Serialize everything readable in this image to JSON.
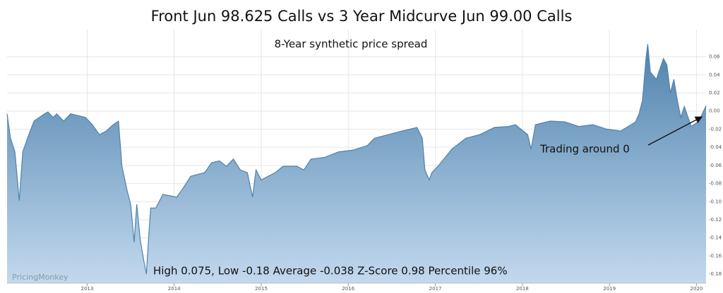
{
  "chart_data": {
    "type": "area",
    "title": "Front Jun 98.625 Calls vs 3 Year Midcurve Jun 99.00 Calls",
    "subtitle": "8-Year synthetic price spread",
    "annotation": "Trading around 0",
    "stats": "High 0.075, Low -0.18 Average -0.038 Z-Score 0.98 Percentile 96%",
    "watermark": "PricingMonkey",
    "color": "#4f82ad",
    "grid": true,
    "xlim": [
      2012.08,
      2020.11
    ],
    "xticks": [
      2013,
      2014,
      2015,
      2016,
      2017,
      2018,
      2019,
      2020
    ],
    "ylim": [
      -0.19,
      0.09
    ],
    "yticks": [
      0.06,
      0.04,
      0.02,
      {
        "value": 0,
        "label": "0.00"
      },
      -0.02,
      -0.04,
      -0.06,
      -0.08,
      {
        "value": -0.1,
        "label": "-0.10"
      },
      -0.12,
      -0.14,
      -0.16,
      -0.18
    ],
    "x": [
      2012.08,
      2012.12,
      2012.17,
      2012.22,
      2012.26,
      2012.33,
      2012.39,
      2012.51,
      2012.55,
      2012.61,
      2012.65,
      2012.73,
      2012.81,
      2012.98,
      2013.06,
      2013.14,
      2013.22,
      2013.3,
      2013.36,
      2013.4,
      2013.46,
      2013.5,
      2013.54,
      2013.57,
      2013.61,
      2013.65,
      2013.68,
      2013.71,
      2013.73,
      2013.79,
      2013.87,
      2014.03,
      2014.11,
      2014.19,
      2014.35,
      2014.43,
      2014.52,
      2014.6,
      2014.68,
      2014.76,
      2014.84,
      2014.9,
      2014.94,
      2015.0,
      2015.16,
      2015.25,
      2015.41,
      2015.49,
      2015.57,
      2015.73,
      2015.89,
      2016.06,
      2016.22,
      2016.3,
      2016.46,
      2016.62,
      2016.79,
      2016.85,
      2016.88,
      2016.93,
      2016.96,
      2017.03,
      2017.19,
      2017.35,
      2017.51,
      2017.68,
      2017.84,
      2017.92,
      2018.06,
      2018.1,
      2018.15,
      2018.32,
      2018.49,
      2018.65,
      2018.81,
      2018.97,
      2019.13,
      2019.3,
      2019.34,
      2019.38,
      2019.42,
      2019.44,
      2019.47,
      2019.54,
      2019.62,
      2019.66,
      2019.7,
      2019.74,
      2019.78,
      2019.82,
      2019.86,
      2019.94,
      2020.03,
      2020.11
    ],
    "values": [
      -0.003,
      -0.03,
      -0.045,
      -0.099,
      -0.045,
      -0.026,
      -0.011,
      -0.003,
      -0.001,
      -0.007,
      -0.003,
      -0.011,
      -0.003,
      -0.007,
      -0.015,
      -0.026,
      -0.022,
      -0.015,
      -0.011,
      -0.061,
      -0.088,
      -0.103,
      -0.145,
      -0.103,
      -0.142,
      -0.165,
      -0.18,
      -0.134,
      -0.107,
      -0.107,
      -0.092,
      -0.095,
      -0.084,
      -0.072,
      -0.068,
      -0.057,
      -0.055,
      -0.061,
      -0.053,
      -0.065,
      -0.068,
      -0.095,
      -0.065,
      -0.076,
      -0.068,
      -0.061,
      -0.061,
      -0.065,
      -0.053,
      -0.051,
      -0.045,
      -0.043,
      -0.038,
      -0.03,
      -0.026,
      -0.022,
      -0.018,
      -0.03,
      -0.065,
      -0.076,
      -0.068,
      -0.061,
      -0.042,
      -0.03,
      -0.026,
      -0.018,
      -0.017,
      -0.015,
      -0.026,
      -0.042,
      -0.015,
      -0.011,
      -0.012,
      -0.017,
      -0.015,
      -0.02,
      -0.022,
      -0.012,
      -0.003,
      0.012,
      0.058,
      0.074,
      0.043,
      0.035,
      0.058,
      0.051,
      0.02,
      0.035,
      0.012,
      -0.007,
      0.005,
      -0.017,
      -0.011,
      0.006
    ]
  }
}
